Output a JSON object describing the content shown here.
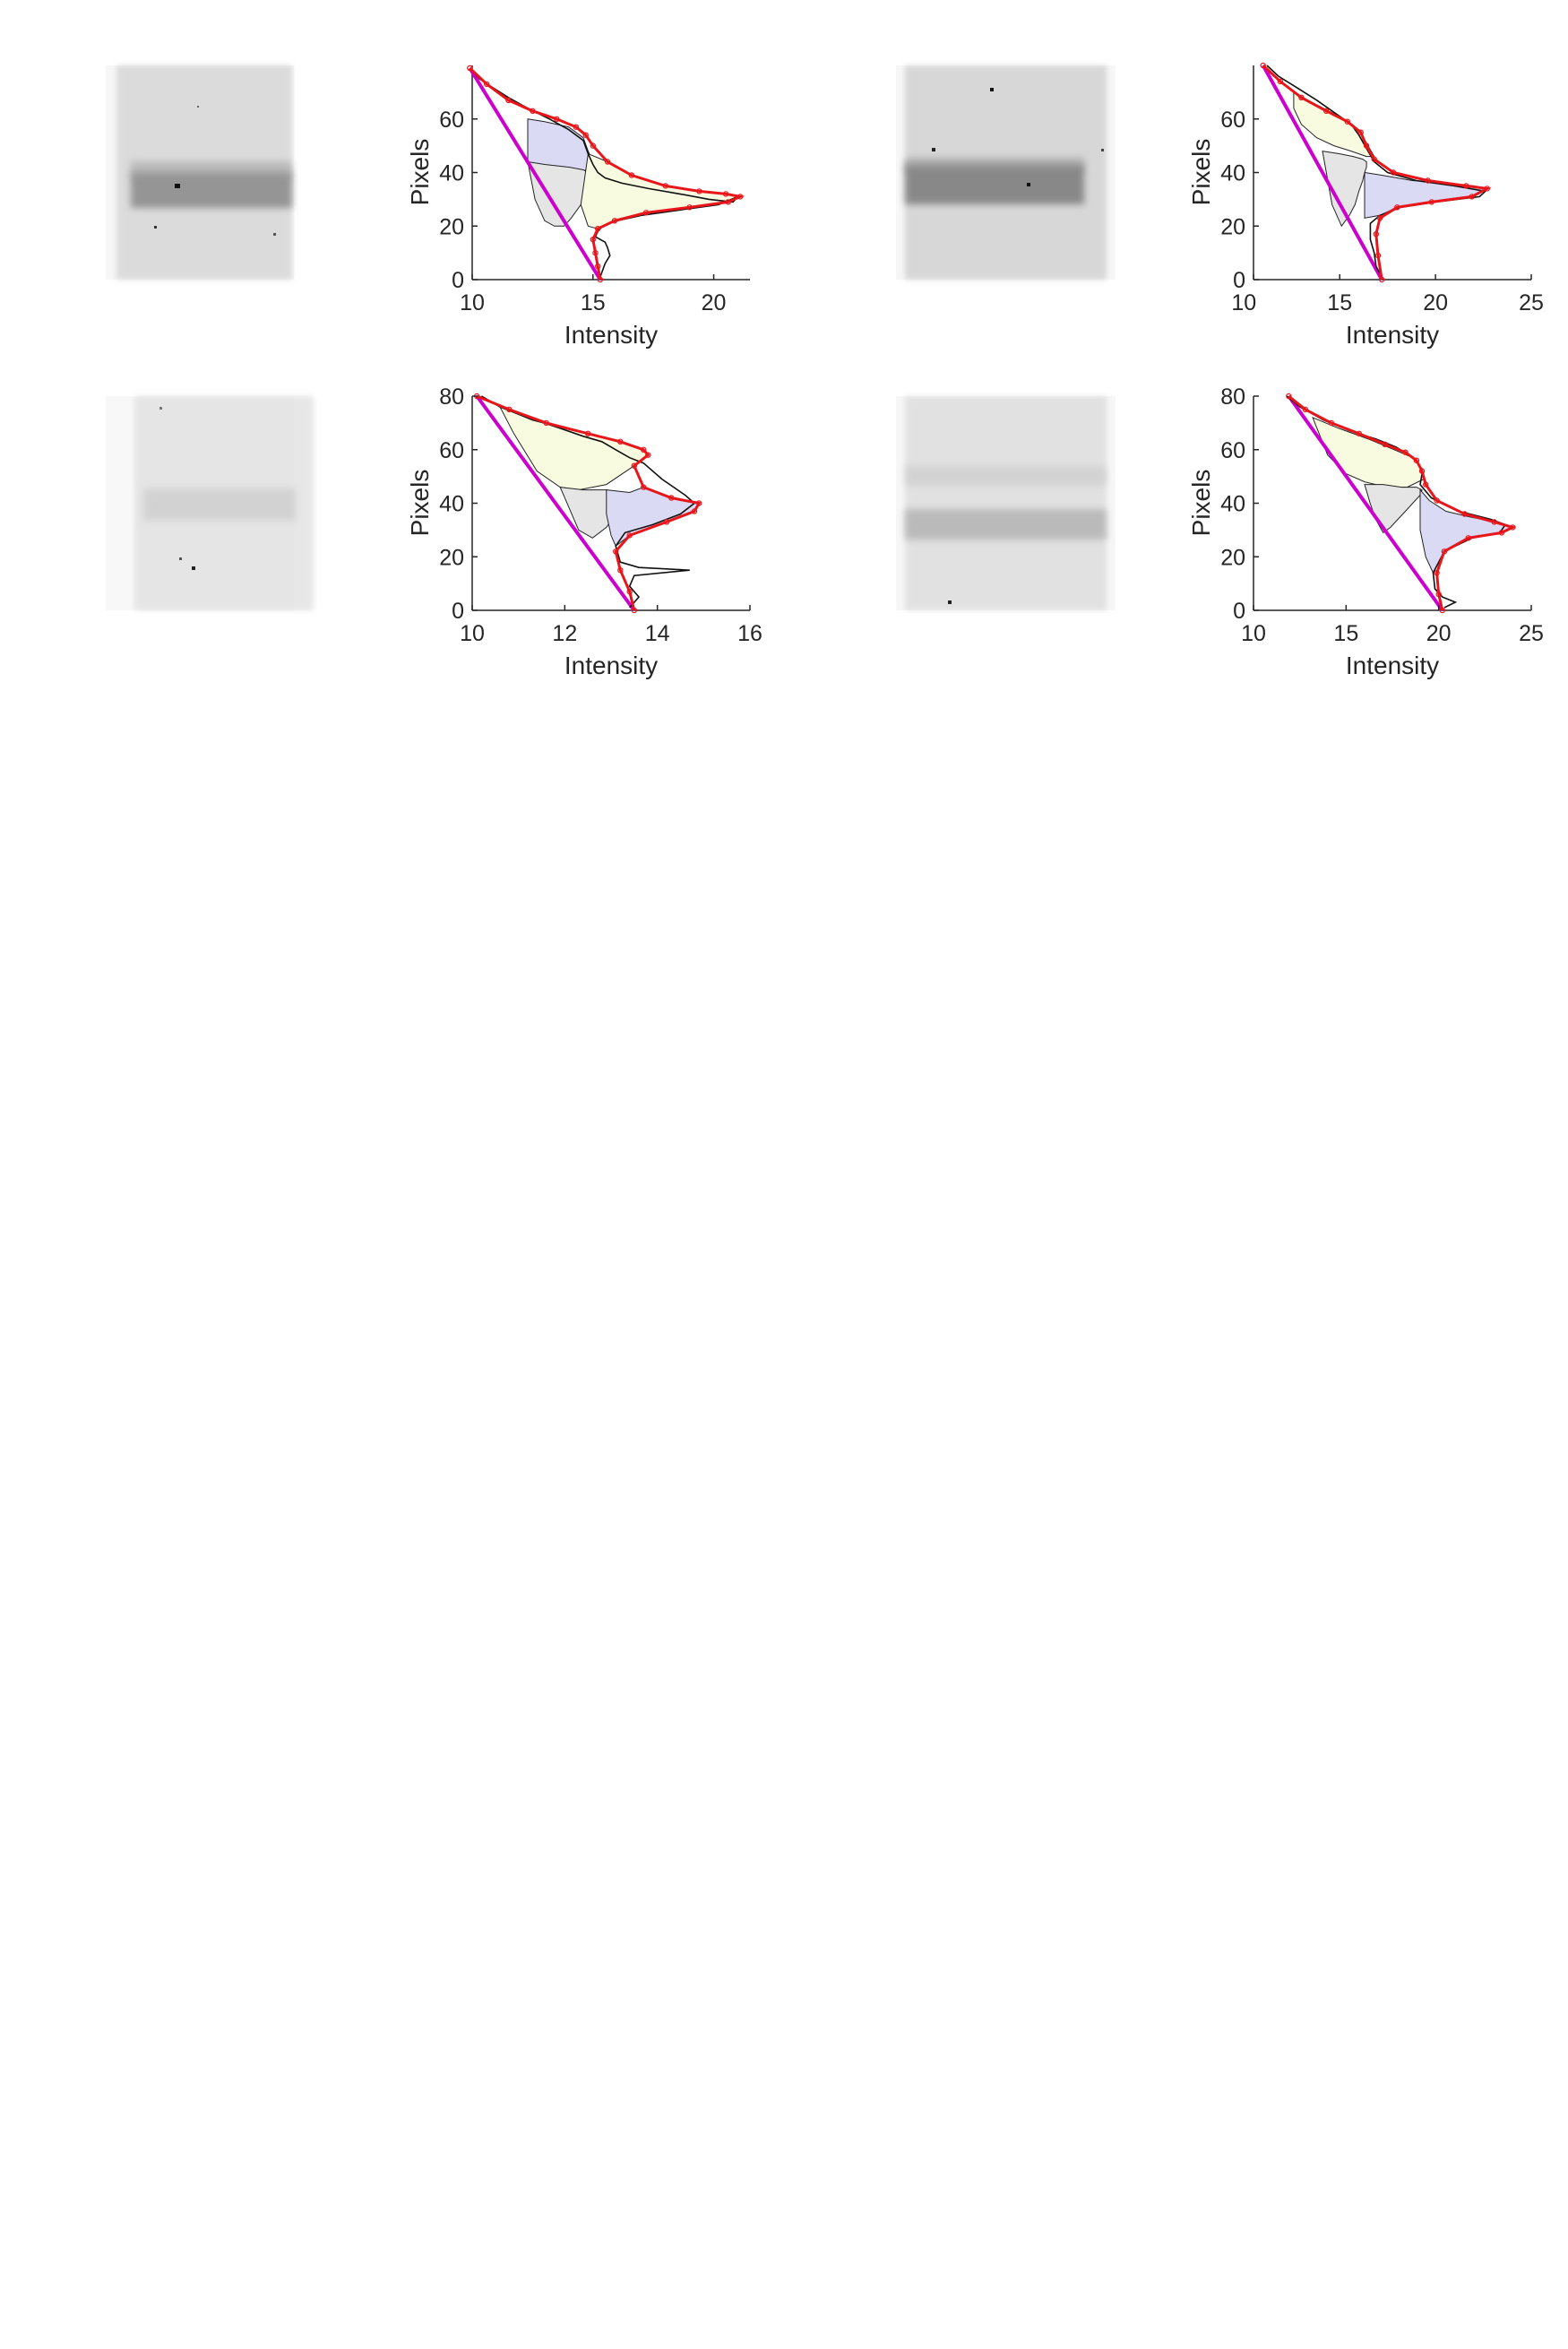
{
  "figure": {
    "panels": [
      {
        "id": "r1c1",
        "kind": "gel"
      },
      {
        "id": "r1c2",
        "kind": "plot"
      },
      {
        "id": "r1c3",
        "kind": "gel"
      },
      {
        "id": "r1c4",
        "kind": "plot"
      }
    ]
  },
  "chart_data": [
    {
      "type": "line",
      "xlabel": "Intensity",
      "ylabel": "Pixels",
      "xlim": [
        10,
        21.5
      ],
      "ylim": [
        0,
        80
      ],
      "xticks": [
        10,
        15,
        20
      ],
      "yticks": [
        0,
        20,
        40,
        60
      ],
      "profile": {
        "x": [
          10,
          10.3,
          10.8,
          11.5,
          12.3,
          13.2,
          14,
          14.6,
          14.8,
          15,
          15.2,
          15.5,
          16.2,
          17.3,
          18.6,
          19.8,
          20.8,
          21,
          20.2,
          18.6,
          17,
          16,
          15.4,
          15.2,
          15.1,
          15.5,
          15.6,
          15.7,
          15.5,
          15.3
        ],
        "y": [
          78,
          75,
          72,
          68,
          64,
          60,
          56,
          52,
          47,
          43,
          40,
          38,
          36,
          34,
          32,
          30,
          29,
          31,
          28,
          26,
          24,
          22,
          20,
          18,
          16,
          14,
          12,
          9,
          6,
          1
        ]
      },
      "fit": {
        "x": [
          9.9,
          10.6,
          11.5,
          12.5,
          13.5,
          14.3,
          14.7,
          15,
          15.6,
          16.6,
          18,
          19.4,
          20.5,
          21.1,
          20.6,
          19,
          17.2,
          15.9,
          15.2,
          15,
          15.1,
          15.2,
          15.3
        ],
        "y": [
          79,
          73,
          67,
          63,
          60,
          57,
          54,
          50,
          44,
          39,
          35,
          33,
          32,
          31,
          29,
          27,
          25,
          22,
          19,
          15,
          10,
          5,
          0
        ]
      },
      "baseline": {
        "x": [
          9.9,
          15.3
        ],
        "y": [
          79,
          0
        ]
      },
      "peaks": [
        {
          "color": "#dadaf5",
          "fill_x": [
            12.3,
            13,
            14,
            14.6,
            14.8,
            15,
            14.9,
            14.5,
            13.8,
            13,
            12.3
          ],
          "fill_y": [
            60,
            59,
            57,
            53,
            48,
            44,
            42,
            40,
            40,
            42,
            44
          ]
        },
        {
          "color": "#e5e5e5",
          "fill_x": [
            12.3,
            13,
            14,
            14.6,
            14.8,
            15,
            14.9,
            14.7,
            14.5,
            14.1,
            13.8,
            13.4,
            13,
            12.6,
            12.3
          ],
          "fill_y": [
            44,
            43,
            42,
            41,
            40,
            39,
            36,
            33,
            28,
            23,
            20,
            20,
            22,
            30,
            44
          ]
        },
        {
          "color": "#f9fbe1",
          "fill_x": [
            14.8,
            15.6,
            16.6,
            18,
            19.4,
            20.5,
            21.1,
            20.6,
            19,
            17.2,
            15.9,
            15.2,
            14.8,
            14.5
          ],
          "fill_y": [
            47,
            44,
            39,
            35,
            33,
            32,
            31,
            29,
            27,
            25,
            22,
            19,
            20,
            28
          ]
        }
      ]
    },
    {
      "type": "line",
      "xlabel": "Intensity",
      "ylabel": "Pixels",
      "xlim": [
        10.5,
        25
      ],
      "ylim": [
        0,
        80
      ],
      "xticks": [
        10,
        15,
        20,
        25
      ],
      "yticks": [
        0,
        20,
        40,
        60
      ],
      "profile": {
        "x": [
          11.2,
          11.8,
          12.7,
          13.8,
          14.8,
          15.6,
          16,
          16.4,
          16.8,
          17.5,
          19,
          21,
          22.6,
          22.3,
          20,
          18.2,
          17.1,
          16.6,
          16.6,
          16.8,
          16.9,
          17.2
        ],
        "y": [
          80,
          76,
          72,
          67,
          62,
          58,
          54,
          49,
          44,
          40,
          37,
          35,
          33,
          31,
          29,
          27,
          24,
          21,
          15,
          10,
          5,
          1
        ]
      },
      "fit": {
        "x": [
          11,
          11.9,
          13,
          14.3,
          15.4,
          16.1,
          16.4,
          16.8,
          17.8,
          19.6,
          21.6,
          22.7,
          21.9,
          19.8,
          18,
          17.1,
          16.9,
          17,
          17.2
        ],
        "y": [
          80,
          74,
          68,
          63,
          59,
          55,
          50,
          45,
          40,
          37,
          35,
          34,
          31,
          29,
          27,
          23,
          17,
          9,
          0
        ]
      },
      "baseline": {
        "x": [
          11,
          17.2
        ],
        "y": [
          80,
          0
        ]
      },
      "peaks": [
        {
          "color": "#dadaf5",
          "fill_x": [
            16.3,
            17.2,
            18.8,
            20.6,
            22,
            22.7,
            21.9,
            19.8,
            18,
            17.1,
            16.3
          ],
          "fill_y": [
            40,
            39,
            37,
            36,
            35,
            34,
            31,
            29,
            27,
            24,
            23
          ]
        },
        {
          "color": "#e5e5e5",
          "fill_x": [
            14.1,
            15,
            15.7,
            16.2,
            16.4,
            16.4,
            16.3,
            16.2,
            16,
            15.8,
            15.5,
            15.1,
            14.6,
            14.1
          ],
          "fill_y": [
            48,
            47,
            46,
            45,
            44,
            42,
            40,
            37,
            33,
            28,
            24,
            20,
            28,
            48
          ]
        },
        {
          "color": "#f9fbe1",
          "fill_x": [
            12.6,
            13.6,
            14.7,
            15.6,
            16.1,
            16.4,
            16.8,
            16.4,
            15.6,
            14.7,
            13.8,
            13,
            12.6
          ],
          "fill_y": [
            70,
            66,
            62,
            58,
            55,
            51,
            46,
            46,
            48,
            50,
            53,
            58,
            64
          ]
        }
      ]
    },
    {
      "type": "line",
      "xlabel": "Intensity",
      "ylabel": "Pixels",
      "xlim": [
        10,
        16
      ],
      "ylim": [
        0,
        80
      ],
      "xticks": [
        10,
        12,
        14,
        16
      ],
      "yticks": [
        0,
        20,
        40,
        60,
        80
      ],
      "profile": {
        "x": [
          10.2,
          10.6,
          11.2,
          11.9,
          12.4,
          12.8,
          13.1,
          13.4,
          13.7,
          14.1,
          14.6,
          14.8,
          14.5,
          13.9,
          13.3,
          13.1,
          13.2,
          13.6,
          14.7,
          13.5,
          13.4,
          13.6,
          13.4
        ],
        "y": [
          80,
          76,
          72,
          68,
          65,
          63,
          60,
          57,
          55,
          49,
          43,
          40,
          36,
          32,
          29,
          24,
          18,
          16,
          15,
          13,
          9,
          5,
          1
        ]
      },
      "fit": {
        "x": [
          10.1,
          10.8,
          11.6,
          12.5,
          13.2,
          13.7,
          13.8,
          13.5,
          13.7,
          14.3,
          14.9,
          14.8,
          14.2,
          13.4,
          13.1,
          13.2,
          13.4,
          13.5
        ],
        "y": [
          80,
          75,
          70,
          66,
          63,
          60,
          58,
          54,
          46,
          42,
          40,
          37,
          33,
          28,
          22,
          15,
          7,
          0
        ]
      },
      "baseline": {
        "x": [
          10.1,
          13.5
        ],
        "y": [
          80,
          0
        ]
      },
      "peaks": [
        {
          "color": "#f9fbe1",
          "fill_x": [
            10.6,
            11.3,
            12.2,
            13,
            13.6,
            13.8,
            13.5,
            12.9,
            12.3,
            11.9,
            11.4,
            10.9,
            10.6
          ],
          "fill_y": [
            76,
            71,
            67,
            64,
            61,
            58,
            54,
            47,
            45,
            46,
            52,
            66,
            76
          ]
        },
        {
          "color": "#e5e5e5",
          "fill_x": [
            11.9,
            12.4,
            12.9,
            13.3,
            13.5,
            13.4,
            13.1,
            12.9,
            12.6,
            12.3,
            11.9
          ],
          "fill_y": [
            46,
            45,
            45,
            44,
            43,
            40,
            36,
            31,
            27,
            30,
            46
          ]
        },
        {
          "color": "#dadaf5",
          "fill_x": [
            12.9,
            13.4,
            13.7,
            14.3,
            14.9,
            14.8,
            14.2,
            13.4,
            13.1,
            13,
            12.9
          ],
          "fill_y": [
            45,
            44,
            46,
            42,
            40,
            37,
            33,
            28,
            24,
            28,
            36
          ]
        }
      ]
    },
    {
      "type": "line",
      "xlabel": "Intensity",
      "ylabel": "Pixels",
      "xlim": [
        10,
        25
      ],
      "ylim": [
        0,
        80
      ],
      "xticks": [
        10,
        15,
        20,
        25
      ],
      "yticks": [
        0,
        20,
        40,
        60,
        80
      ],
      "profile": {
        "x": [
          11.8,
          12.5,
          13.8,
          15.2,
          16.6,
          17.7,
          18.4,
          18.9,
          19.1,
          19,
          19.6,
          21.1,
          22.8,
          23.6,
          23.3,
          21.8,
          20.3,
          19.7,
          19.8,
          20.2,
          20.9,
          20.3
        ],
        "y": [
          80,
          76,
          71,
          67,
          64,
          61,
          58,
          55,
          51,
          47,
          42,
          37,
          34,
          32,
          29,
          27,
          22,
          14,
          8,
          5,
          3,
          1
        ]
      },
      "fit": {
        "x": [
          11.9,
          12.8,
          14.2,
          15.7,
          17.1,
          18.2,
          18.8,
          19.1,
          19.3,
          19.9,
          21.4,
          23,
          24,
          23.4,
          21.6,
          20.3,
          19.9,
          20,
          20.2
        ],
        "y": [
          80,
          75,
          70,
          66,
          62,
          59,
          56,
          52,
          47,
          41,
          36,
          33,
          31,
          29,
          27,
          22,
          14,
          6,
          0
        ]
      },
      "baseline": {
        "x": [
          11.9,
          20.2
        ],
        "y": [
          80,
          0
        ]
      },
      "peaks": [
        {
          "color": "#f9fbe1",
          "fill_x": [
            13.2,
            14.6,
            16.2,
            17.6,
            18.6,
            19.1,
            19.2,
            18.3,
            17.2,
            16,
            15,
            14,
            13.2
          ],
          "fill_y": [
            72,
            68,
            64,
            60,
            57,
            53,
            49,
            46,
            46,
            48,
            51,
            58,
            72
          ]
        },
        {
          "color": "#e5e5e5",
          "fill_x": [
            16,
            17,
            18,
            18.8,
            19.1,
            19,
            18.6,
            18.2,
            17.8,
            17.4,
            17,
            16.6,
            16.3,
            16
          ],
          "fill_y": [
            47,
            47,
            46,
            46,
            45,
            43,
            40,
            37,
            34,
            31,
            29,
            34,
            40,
            47
          ]
        },
        {
          "color": "#dadaf5",
          "fill_x": [
            19,
            19.5,
            20.4,
            21.6,
            23,
            24,
            23.4,
            21.6,
            20.3,
            19.7,
            19.3,
            19,
            19
          ],
          "fill_y": [
            45,
            41,
            37,
            35,
            33,
            31,
            29,
            27,
            22,
            14,
            20,
            30,
            45
          ]
        }
      ]
    }
  ]
}
